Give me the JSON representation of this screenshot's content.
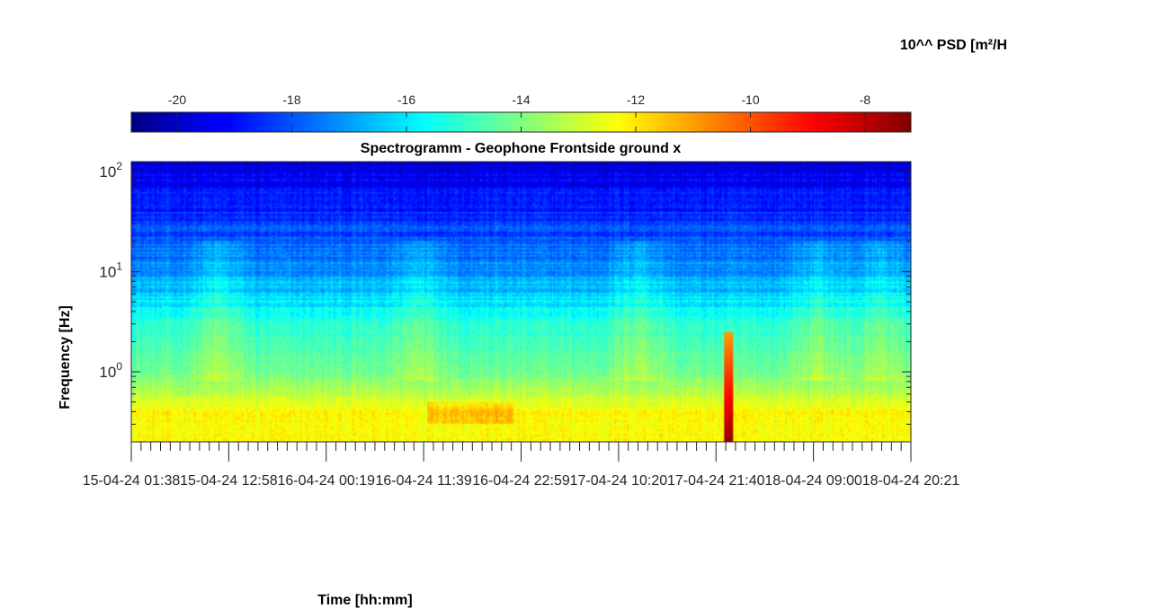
{
  "chart_data": {
    "type": "heatmap",
    "title": "Spectrogramm - Geophone Frontside ground x",
    "xlabel": "Time [hh:mm]",
    "ylabel": "Frequency [Hz]",
    "x_ticks": [
      "15-04-24  01:38",
      "15-04-24  12:58",
      "16-04-24  00:19",
      "16-04-24  11:39",
      "16-04-24  22:59",
      "17-04-24  10:20",
      "17-04-24  21:40",
      "18-04-24  09:00",
      "18-04-24  20:21"
    ],
    "y_scale": "log",
    "y_range": [
      0.2,
      125
    ],
    "y_ticks": [
      {
        "value": 1,
        "base": "10",
        "exp": "0"
      },
      {
        "value": 10,
        "base": "10",
        "exp": "1"
      },
      {
        "value": 100,
        "base": "10",
        "exp": "2"
      }
    ],
    "colorbar": {
      "label": "10^^ PSD [m²/H",
      "colormap": "jet",
      "range": [
        -20.8,
        -7.2
      ],
      "ticks": [
        "-20",
        "-18",
        "-16",
        "-14",
        "-12",
        "-10",
        "-8"
      ],
      "tick_values": [
        -20,
        -18,
        -16,
        -14,
        -12,
        -10,
        -8
      ]
    },
    "approx_levels": [
      {
        "freq_hz": 100,
        "log_psd": -19.5
      },
      {
        "freq_hz": 10,
        "log_psd": -17.2
      },
      {
        "freq_hz": 3,
        "log_psd": -15.2
      },
      {
        "freq_hz": 1,
        "log_psd": -14.3
      },
      {
        "freq_hz": 0.4,
        "log_psd": -12.3
      }
    ],
    "events": [
      {
        "time_fraction": 0.765,
        "freq_max_hz": 2.5,
        "peak_log_psd": -7.5
      }
    ]
  }
}
